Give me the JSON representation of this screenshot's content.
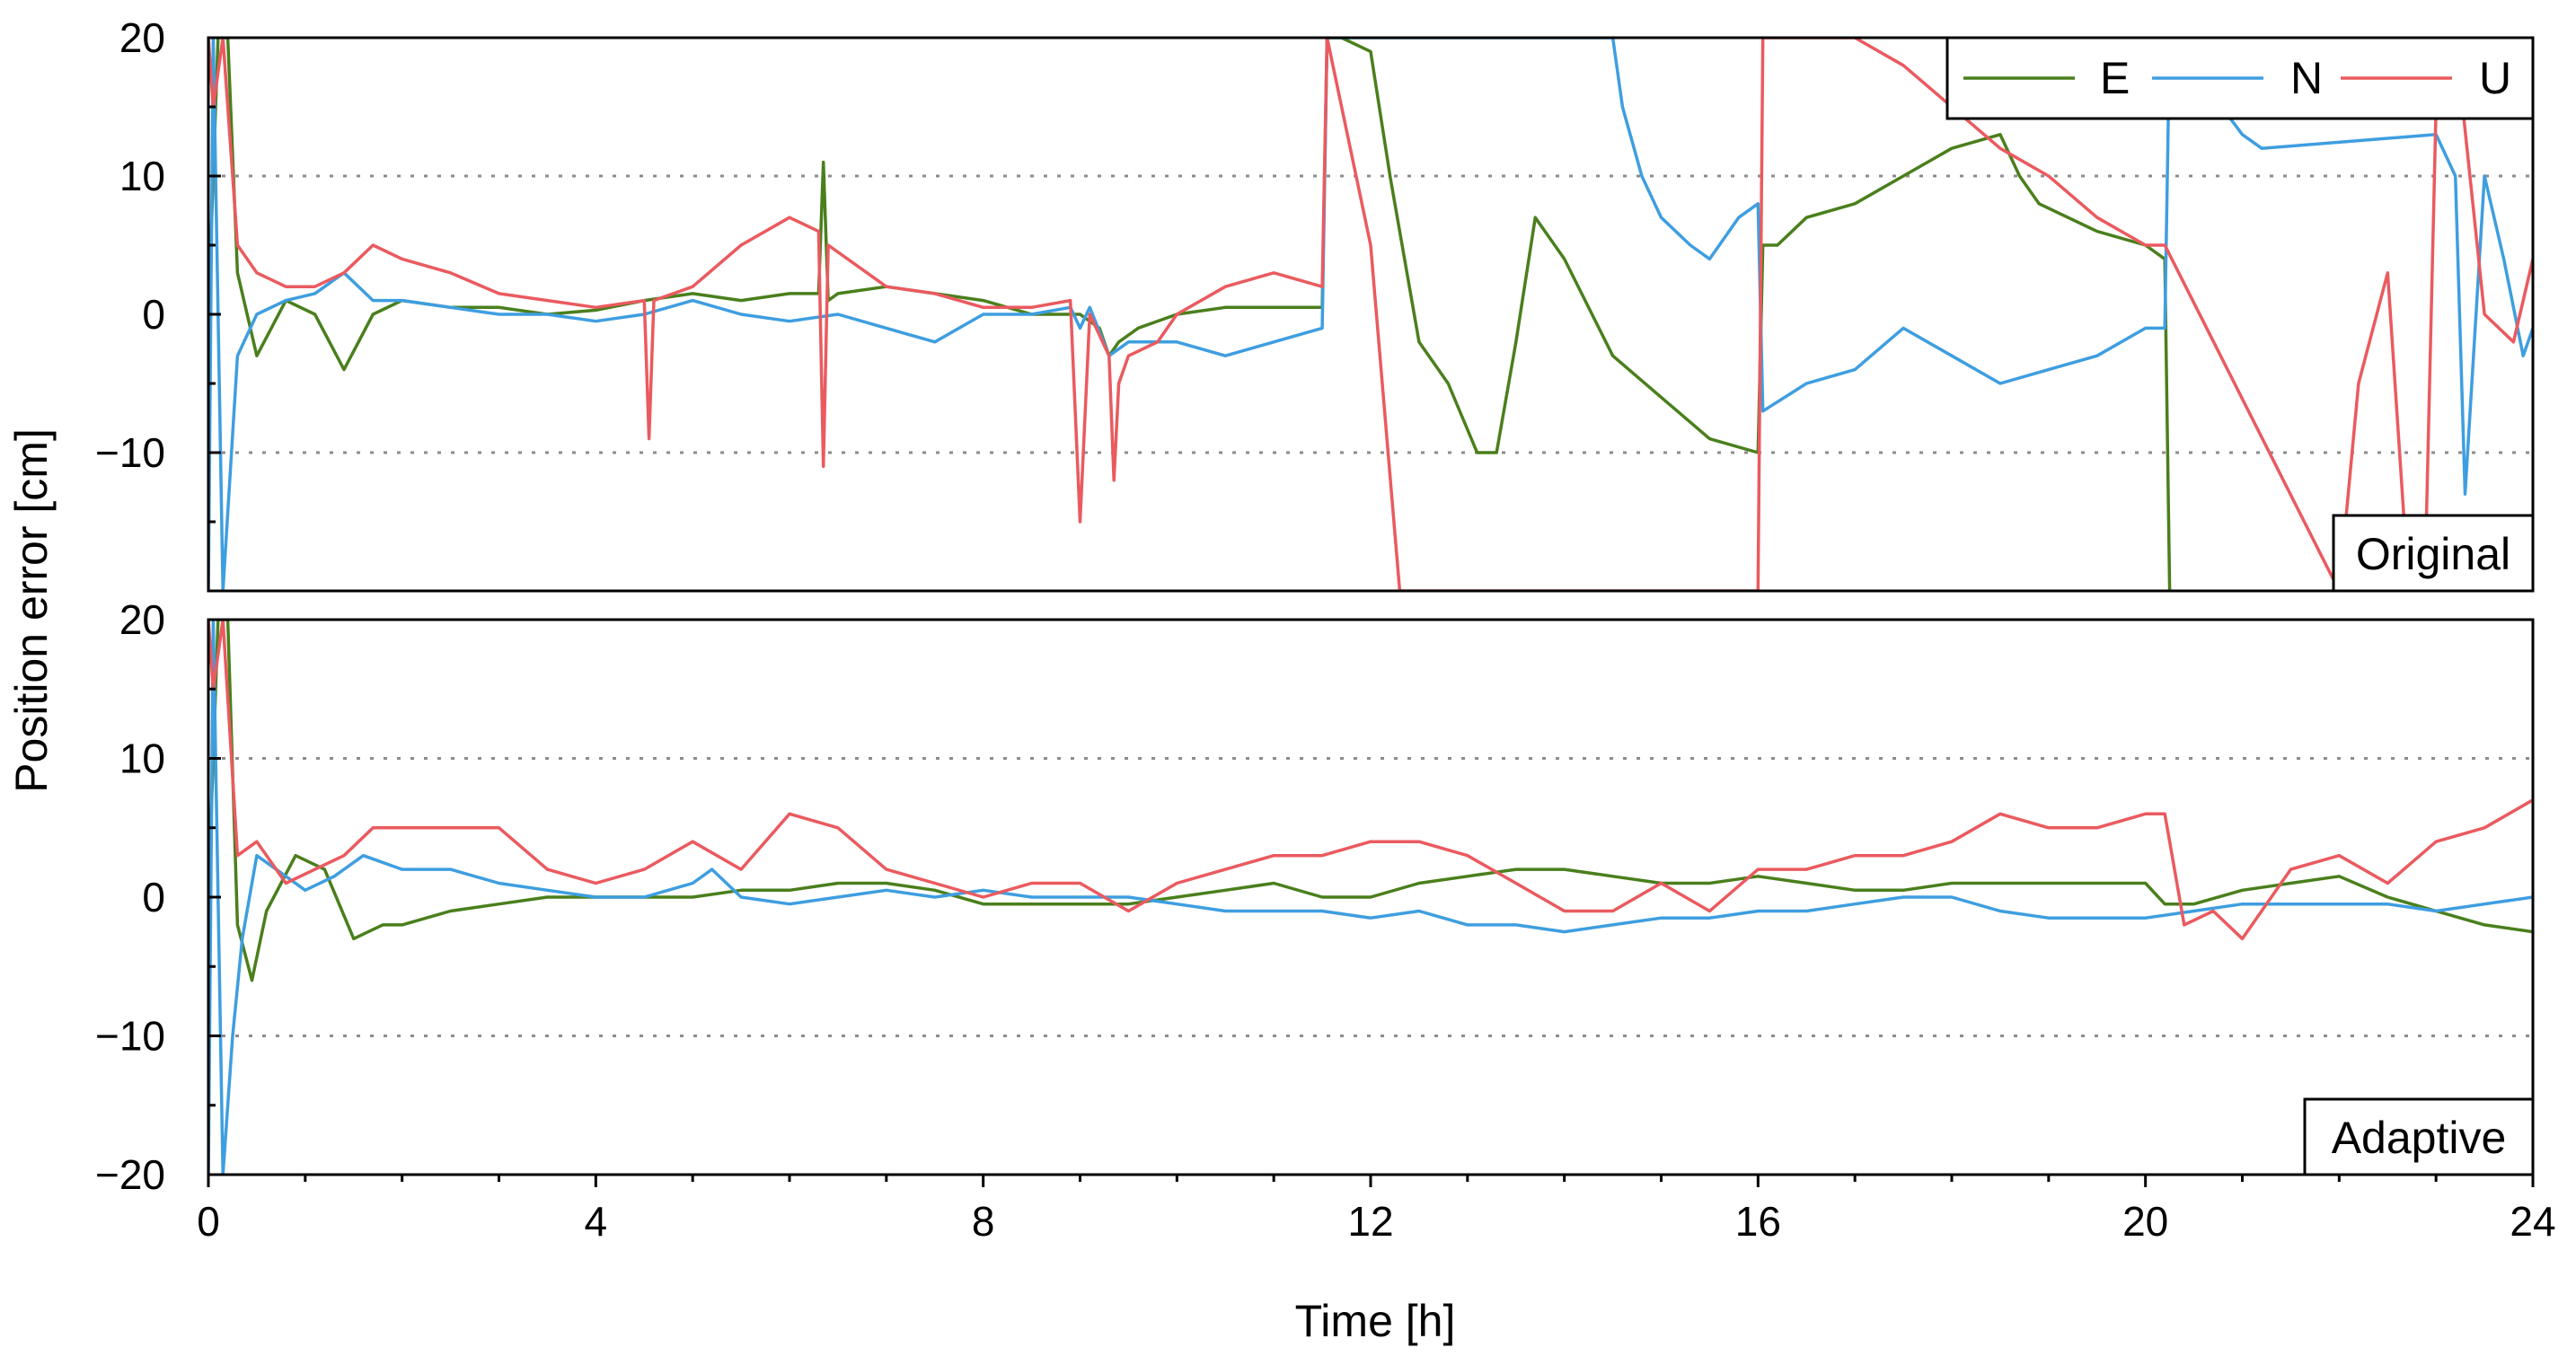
{
  "chart_data": {
    "type": "line",
    "xlabel": "Time [h]",
    "ylabel": "Position error [cm]",
    "xlim": [
      0,
      24
    ],
    "x_ticks": [
      0,
      4,
      8,
      12,
      16,
      20,
      24
    ],
    "x_tick_labels": [
      "0",
      "4",
      "8",
      "12",
      "16",
      "20",
      "24"
    ],
    "legend": {
      "placement": "top-right of upper panel",
      "entries": [
        "E",
        "N",
        "U"
      ]
    },
    "colors": {
      "E": "#4a7f1c",
      "N": "#3e9ee0",
      "U": "#ea5a5f",
      "grid": "#8c8c8c",
      "frame": "#000000"
    },
    "panels": [
      {
        "name": "original",
        "tag": "Original",
        "ylim": [
          -20,
          20
        ],
        "y_ticks": [
          20,
          10,
          0,
          -10
        ],
        "y_tick_labels": [
          "20",
          "10",
          "0",
          "−10"
        ],
        "grid_y": [
          10,
          -10
        ],
        "series": [
          {
            "name": "E",
            "x": [
              0,
              0.1,
              0.2,
              0.3,
              0.5,
              0.8,
              1.1,
              1.4,
              1.7,
              2.0,
              2.5,
              3.0,
              3.5,
              4.0,
              4.5,
              5.0,
              5.5,
              6.0,
              6.3,
              6.35,
              6.4,
              6.5,
              7.0,
              7.5,
              8.0,
              8.5,
              9.0,
              9.2,
              9.3,
              9.4,
              9.6,
              10.0,
              10.5,
              11.0,
              11.5,
              11.55,
              11.7,
              12.0,
              12.2,
              12.5,
              12.8,
              13.1,
              13.3,
              13.5,
              13.7,
              14.0,
              14.5,
              15.0,
              15.5,
              16.0,
              16.05,
              16.2,
              16.5,
              17.0,
              17.5,
              18.0,
              18.5,
              18.7,
              18.9,
              19.2,
              19.5,
              20.0,
              20.2,
              20.25
            ],
            "values": [
              0,
              20,
              20,
              3,
              -3,
              1,
              0,
              -4,
              0,
              1,
              0.5,
              0.5,
              0,
              0.3,
              1,
              1.5,
              1,
              1.5,
              1.5,
              11,
              1,
              1.5,
              2,
              1.5,
              1,
              0,
              0,
              -1,
              -3,
              -2,
              -1,
              0,
              0.5,
              0.5,
              0.5,
              20,
              20,
              19,
              10,
              -2,
              -5,
              -10,
              -10,
              -2,
              7,
              4,
              -3,
              -6,
              -9,
              -10,
              5,
              5,
              7,
              8,
              10,
              12,
              13,
              10,
              8,
              7,
              6,
              5,
              4,
              -20
            ]
          },
          {
            "name": "N",
            "x": [
              0,
              0.05,
              0.15,
              0.3,
              0.5,
              0.8,
              1.1,
              1.4,
              1.7,
              2.0,
              2.5,
              3.0,
              3.5,
              4.0,
              4.5,
              5.0,
              5.5,
              6.0,
              6.5,
              7.0,
              7.5,
              8.0,
              8.5,
              8.9,
              9.0,
              9.1,
              9.3,
              9.5,
              10.0,
              10.5,
              11.0,
              11.5,
              11.55,
              14.5,
              14.6,
              14.8,
              15.0,
              15.3,
              15.5,
              15.8,
              16.0,
              16.05,
              16.5,
              17.0,
              17.5,
              18.0,
              18.5,
              19.0,
              19.5,
              20.0,
              20.2,
              20.25,
              21.0,
              21.2,
              23.0,
              23.2,
              23.3,
              23.5,
              23.7,
              23.9,
              24.0
            ],
            "values": [
              -20,
              20,
              -20,
              -3,
              0,
              1,
              1.5,
              3,
              1,
              1,
              0.5,
              0,
              0,
              -0.5,
              0,
              1,
              0,
              -0.5,
              0,
              -1,
              -2,
              0,
              0,
              0.5,
              -1,
              0.5,
              -3,
              -2,
              -2,
              -3,
              -2,
              -1,
              20,
              20,
              15,
              10,
              7,
              5,
              4,
              7,
              8,
              -7,
              -5,
              -4,
              -1,
              -3,
              -5,
              -4,
              -3,
              -1,
              -1,
              20,
              13,
              12,
              13,
              10,
              -13,
              10,
              4,
              -3,
              -1
            ]
          },
          {
            "name": "U",
            "x": [
              0,
              0.05,
              0.15,
              0.3,
              0.5,
              0.8,
              1.1,
              1.4,
              1.7,
              2.0,
              2.5,
              3.0,
              3.5,
              4.0,
              4.5,
              4.55,
              4.6,
              5.0,
              5.5,
              6.0,
              6.3,
              6.35,
              6.4,
              6.8,
              7.0,
              7.5,
              8.0,
              8.5,
              8.9,
              9.0,
              9.1,
              9.3,
              9.35,
              9.4,
              9.5,
              9.8,
              10.0,
              10.5,
              11.0,
              11.5,
              11.55,
              12.0,
              12.3,
              12.5,
              15.9,
              16.0,
              16.05,
              17.0,
              17.5,
              18.0,
              18.5,
              19.0,
              19.5,
              20.0,
              20.2,
              22.0,
              22.2,
              22.5,
              22.7,
              22.9,
              23.0,
              23.2,
              23.5,
              23.8,
              24.0
            ],
            "values": [
              20,
              15,
              20,
              5,
              3,
              2,
              2,
              3,
              5,
              4,
              3,
              1.5,
              1,
              0.5,
              1,
              -9,
              1,
              2,
              5,
              7,
              6,
              -11,
              5,
              3,
              2,
              1.5,
              0.5,
              0.5,
              1,
              -15,
              0,
              -3,
              -12,
              -5,
              -3,
              -2,
              0,
              2,
              3,
              2,
              20,
              5,
              -20,
              -20,
              -20,
              -20,
              20,
              20,
              18,
              15,
              12,
              10,
              7,
              5,
              5,
              -20,
              -5,
              3,
              -18,
              -15,
              15,
              20,
              0,
              -2,
              4
            ]
          }
        ]
      },
      {
        "name": "adaptive",
        "tag": "Adaptive",
        "ylim": [
          -20,
          20
        ],
        "y_ticks": [
          20,
          10,
          0,
          -10,
          -20
        ],
        "y_tick_labels": [
          "20",
          "10",
          "0",
          "−10",
          "−20"
        ],
        "grid_y": [
          10,
          -10
        ],
        "series": [
          {
            "name": "E",
            "x": [
              0,
              0.1,
              0.2,
              0.3,
              0.45,
              0.6,
              0.9,
              1.2,
              1.5,
              1.8,
              2.0,
              2.5,
              3.0,
              3.5,
              4.0,
              4.5,
              5.0,
              5.5,
              6.0,
              6.5,
              7.0,
              7.5,
              8.0,
              8.5,
              9.0,
              9.5,
              10.0,
              10.5,
              11.0,
              11.5,
              12.0,
              12.5,
              13.0,
              13.5,
              14.0,
              14.5,
              15.0,
              15.5,
              16.0,
              16.5,
              17.0,
              17.5,
              18.0,
              18.5,
              19.0,
              19.5,
              20.0,
              20.2,
              20.5,
              21.0,
              21.5,
              22.0,
              22.5,
              23.0,
              23.5,
              24.0
            ],
            "values": [
              0,
              20,
              20,
              -2,
              -6,
              -1,
              3,
              2,
              -3,
              -2,
              -2,
              -1,
              -0.5,
              0,
              0,
              0,
              0,
              0.5,
              0.5,
              1,
              1,
              0.5,
              -0.5,
              -0.5,
              -0.5,
              -0.5,
              0,
              0.5,
              1,
              0,
              0,
              1,
              1.5,
              2,
              2,
              1.5,
              1,
              1,
              1.5,
              1,
              0.5,
              0.5,
              1,
              1,
              1,
              1,
              1,
              -0.5,
              -0.5,
              0.5,
              1,
              1.5,
              0,
              -1,
              -2,
              -2.5
            ]
          },
          {
            "name": "N",
            "x": [
              0,
              0.05,
              0.15,
              0.25,
              0.35,
              0.5,
              0.7,
              1.0,
              1.3,
              1.6,
              2.0,
              2.5,
              3.0,
              3.5,
              4.0,
              4.5,
              5.0,
              5.2,
              5.5,
              6.0,
              6.5,
              7.0,
              7.5,
              8.0,
              8.5,
              9.0,
              9.5,
              10.0,
              10.5,
              11.0,
              11.5,
              12.0,
              12.5,
              13.0,
              13.5,
              14.0,
              14.5,
              15.0,
              15.5,
              16.0,
              16.5,
              17.0,
              17.5,
              18.0,
              18.5,
              19.0,
              19.5,
              20.0,
              20.5,
              21.0,
              21.5,
              22.0,
              22.5,
              23.0,
              23.5,
              24.0
            ],
            "values": [
              -20,
              20,
              -20,
              -10,
              -3,
              3,
              2,
              0.5,
              1.5,
              3,
              2,
              2,
              1,
              0.5,
              0,
              0,
              1,
              2,
              0,
              -0.5,
              0,
              0.5,
              0,
              0.5,
              0,
              0,
              0,
              -0.5,
              -1,
              -1,
              -1,
              -1.5,
              -1,
              -2,
              -2,
              -2.5,
              -2,
              -1.5,
              -1.5,
              -1,
              -1,
              -0.5,
              0,
              0,
              -1,
              -1.5,
              -1.5,
              -1.5,
              -1,
              -0.5,
              -0.5,
              -0.5,
              -0.5,
              -1,
              -0.5,
              0
            ]
          },
          {
            "name": "U",
            "x": [
              0,
              0.05,
              0.15,
              0.3,
              0.5,
              0.8,
              1.1,
              1.4,
              1.7,
              2.0,
              2.5,
              3.0,
              3.5,
              4.0,
              4.5,
              5.0,
              5.5,
              6.0,
              6.5,
              7.0,
              7.5,
              8.0,
              8.5,
              9.0,
              9.5,
              10.0,
              10.5,
              11.0,
              11.5,
              12.0,
              12.5,
              13.0,
              13.5,
              14.0,
              14.5,
              15.0,
              15.5,
              16.0,
              16.5,
              17.0,
              17.5,
              18.0,
              18.5,
              19.0,
              19.5,
              20.0,
              20.2,
              20.4,
              20.7,
              21.0,
              21.5,
              22.0,
              22.5,
              23.0,
              23.5,
              24.0
            ],
            "values": [
              20,
              15,
              20,
              3,
              4,
              1,
              2,
              3,
              5,
              5,
              5,
              5,
              2,
              1,
              2,
              4,
              2,
              6,
              5,
              2,
              1,
              0,
              1,
              1,
              -1,
              1,
              2,
              3,
              3,
              4,
              4,
              3,
              1,
              -1,
              -1,
              1,
              -1,
              2,
              2,
              3,
              3,
              4,
              6,
              5,
              5,
              6,
              6,
              -2,
              -1,
              -3,
              2,
              3,
              1,
              4,
              5,
              7
            ]
          }
        ]
      }
    ]
  }
}
